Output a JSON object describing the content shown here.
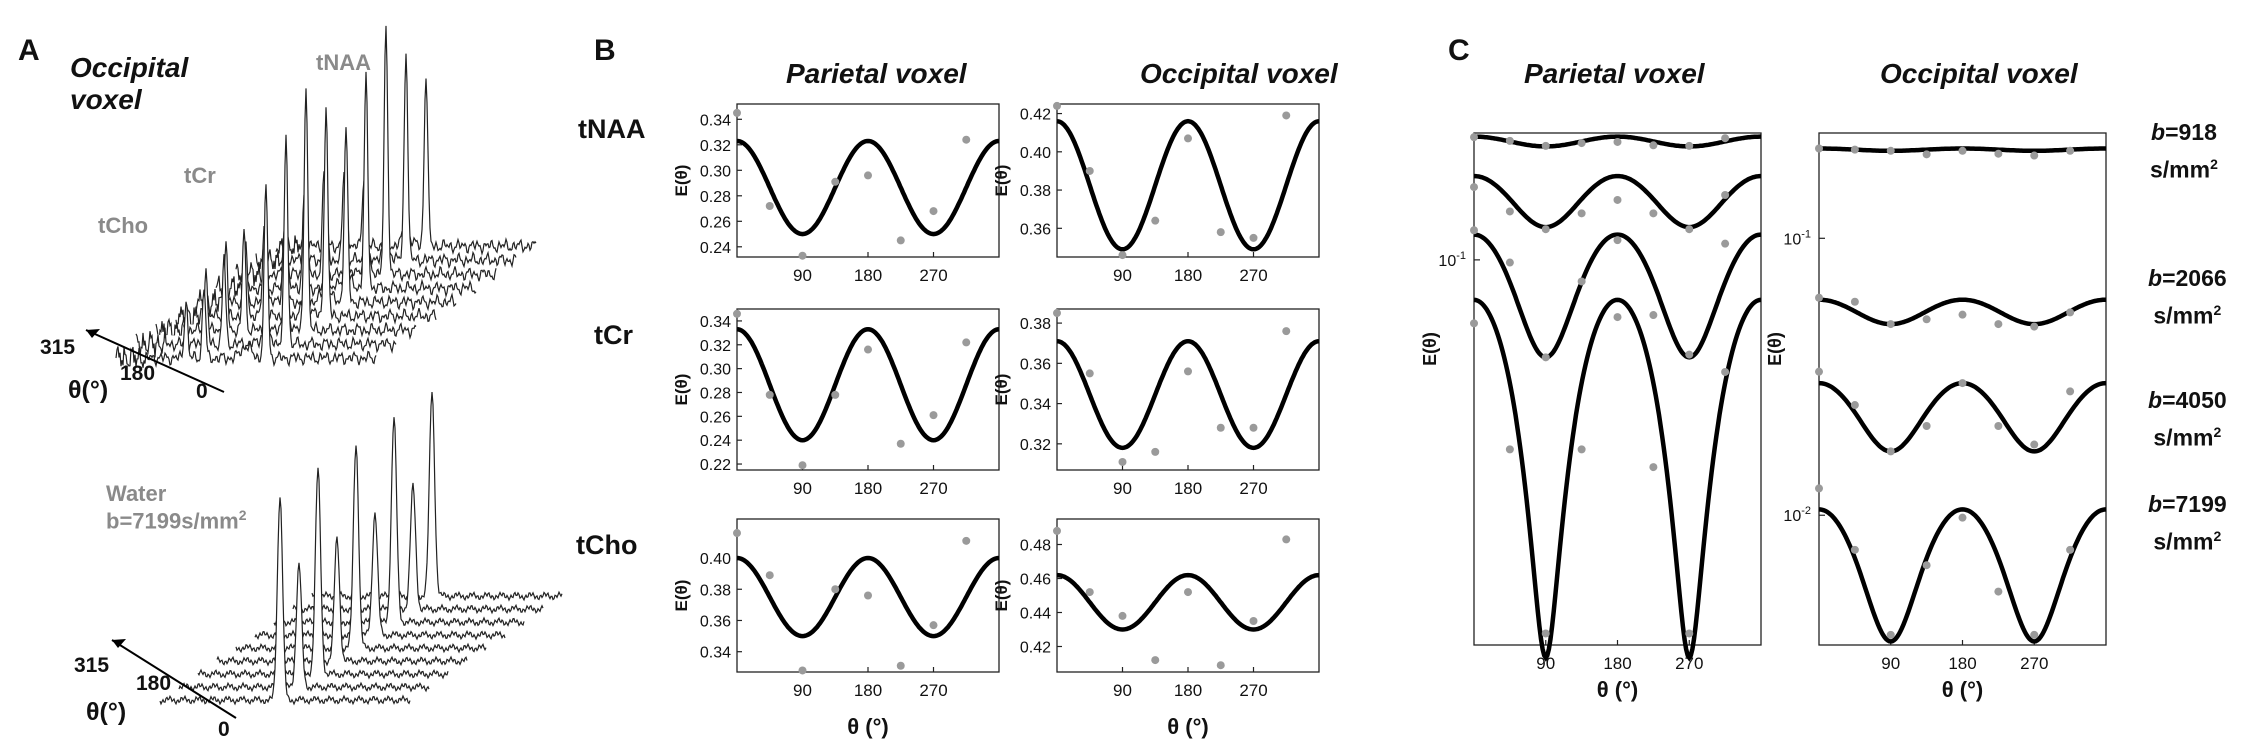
{
  "panelA": {
    "letter": "A",
    "title_line1": "Occipital",
    "title_line2": "voxel",
    "labels": {
      "tNAA": "tNAA",
      "tCr": "tCr",
      "tCho": "tCho"
    },
    "water_line1": "Water",
    "water_line2": "b=7199s/mm",
    "water_sup": "2",
    "axis_ticks": [
      "315",
      "180",
      "0"
    ],
    "axis_label": "θ(°)"
  },
  "panelB": {
    "letter": "B",
    "col_titles": [
      "Parietal voxel",
      "Occipital voxel"
    ],
    "row_labels": [
      "tNAA",
      "tCr",
      "tCho"
    ],
    "ylabel": "E(θ)",
    "xlabel": "θ (°)"
  },
  "panelC": {
    "letter": "C",
    "col_titles": [
      "Parietal voxel",
      "Occipital voxel"
    ],
    "ylabel": "E(θ)",
    "xlabel": "θ (°)",
    "b_labels": [
      {
        "prefix": "b",
        "value": "=918",
        "unit": "s/mm",
        "sup": "2"
      },
      {
        "prefix": "b",
        "value": "=2066",
        "unit": "s/mm",
        "sup": "2"
      },
      {
        "prefix": "b",
        "value": "=4050",
        "unit": "s/mm",
        "sup": "2"
      },
      {
        "prefix": "b",
        "value": "=7199",
        "unit": "s/mm",
        "sup": "2"
      }
    ],
    "parietal_ticks": [
      "10",
      "-1"
    ],
    "occipital_ticks": [
      [
        "10",
        "-1"
      ],
      [
        "10",
        "-2"
      ]
    ]
  },
  "chart_data": [
    {
      "type": "line",
      "panel": "B",
      "title": "Parietal voxel",
      "metabolite": "tNAA",
      "xlabel": "θ (°)",
      "ylabel": "E(θ)",
      "xlim": [
        0,
        360
      ],
      "ylim": [
        0.232,
        0.352
      ],
      "xticks": [
        90,
        180,
        270
      ],
      "yticks": [
        0.24,
        0.26,
        0.28,
        0.3,
        0.32,
        0.34
      ],
      "fit": {
        "mean": 0.2865,
        "amp": 0.0365
      },
      "points": [
        [
          0,
          0.345
        ],
        [
          45,
          0.272
        ],
        [
          90,
          0.233
        ],
        [
          135,
          0.291
        ],
        [
          180,
          0.296
        ],
        [
          225,
          0.245
        ],
        [
          270,
          0.268
        ],
        [
          315,
          0.324
        ]
      ]
    },
    {
      "type": "line",
      "panel": "B",
      "title": "Occipital voxel",
      "metabolite": "tNAA",
      "xlabel": "θ (°)",
      "ylabel": "E(θ)",
      "xlim": [
        0,
        360
      ],
      "ylim": [
        0.345,
        0.425
      ],
      "xticks": [
        90,
        180,
        270
      ],
      "yticks": [
        0.36,
        0.38,
        0.4,
        0.42
      ],
      "fit": {
        "mean": 0.3825,
        "amp": 0.0335
      },
      "points": [
        [
          0,
          0.424
        ],
        [
          45,
          0.39
        ],
        [
          90,
          0.346
        ],
        [
          135,
          0.364
        ],
        [
          180,
          0.407
        ],
        [
          225,
          0.358
        ],
        [
          270,
          0.355
        ],
        [
          315,
          0.419
        ]
      ]
    },
    {
      "type": "line",
      "panel": "B",
      "title": "Parietal voxel",
      "metabolite": "tCr",
      "xlabel": "θ (°)",
      "ylabel": "E(θ)",
      "xlim": [
        0,
        360
      ],
      "ylim": [
        0.215,
        0.35
      ],
      "xticks": [
        90,
        180,
        270
      ],
      "yticks": [
        0.22,
        0.24,
        0.26,
        0.28,
        0.3,
        0.32,
        0.34
      ],
      "fit": {
        "mean": 0.2865,
        "amp": 0.0465
      },
      "points": [
        [
          0,
          0.346
        ],
        [
          45,
          0.278
        ],
        [
          90,
          0.219
        ],
        [
          135,
          0.278
        ],
        [
          180,
          0.316
        ],
        [
          225,
          0.237
        ],
        [
          270,
          0.261
        ],
        [
          315,
          0.322
        ]
      ]
    },
    {
      "type": "line",
      "panel": "B",
      "title": "Occipital voxel",
      "metabolite": "tCr",
      "xlabel": "θ (°)",
      "ylabel": "E(θ)",
      "xlim": [
        0,
        360
      ],
      "ylim": [
        0.307,
        0.387
      ],
      "xticks": [
        90,
        180,
        270
      ],
      "yticks": [
        0.32,
        0.34,
        0.36,
        0.38
      ],
      "fit": {
        "mean": 0.3445,
        "amp": 0.0265
      },
      "points": [
        [
          0,
          0.385
        ],
        [
          45,
          0.355
        ],
        [
          90,
          0.311
        ],
        [
          135,
          0.316
        ],
        [
          180,
          0.356
        ],
        [
          225,
          0.328
        ],
        [
          270,
          0.328
        ],
        [
          315,
          0.376
        ]
      ]
    },
    {
      "type": "line",
      "panel": "B",
      "title": "Parietal voxel",
      "metabolite": "tCho",
      "xlabel": "θ (°)",
      "ylabel": "E(θ)",
      "xlim": [
        0,
        360
      ],
      "ylim": [
        0.327,
        0.425
      ],
      "xticks": [
        90,
        180,
        270
      ],
      "yticks": [
        0.34,
        0.36,
        0.38,
        0.4
      ],
      "fit": {
        "mean": 0.375,
        "amp": 0.025
      },
      "points": [
        [
          0,
          0.416
        ],
        [
          45,
          0.389
        ],
        [
          90,
          0.328
        ],
        [
          135,
          0.38
        ],
        [
          180,
          0.376
        ],
        [
          225,
          0.331
        ],
        [
          270,
          0.357
        ],
        [
          315,
          0.411
        ]
      ]
    },
    {
      "type": "line",
      "panel": "B",
      "title": "Occipital voxel",
      "metabolite": "tCho",
      "xlabel": "θ (°)",
      "ylabel": "E(θ)",
      "xlim": [
        0,
        360
      ],
      "ylim": [
        0.405,
        0.495
      ],
      "xticks": [
        90,
        180,
        270
      ],
      "yticks": [
        0.42,
        0.44,
        0.46,
        0.48
      ],
      "fit": {
        "mean": 0.446,
        "amp": 0.016
      },
      "points": [
        [
          0,
          0.488
        ],
        [
          45,
          0.452
        ],
        [
          90,
          0.438
        ],
        [
          135,
          0.412
        ],
        [
          180,
          0.452
        ],
        [
          225,
          0.409
        ],
        [
          270,
          0.435
        ],
        [
          315,
          0.483
        ]
      ]
    },
    {
      "type": "line",
      "panel": "C",
      "title": "Parietal voxel",
      "xlabel": "θ (°)",
      "ylabel": "E(θ)",
      "yscale": "log",
      "xlim": [
        0,
        360
      ],
      "xticks": [
        90,
        180,
        270
      ],
      "yticks": [
        0.1
      ],
      "series": [
        {
          "name": "b=918",
          "fit": {
            "mean": 0.244,
            "amp": 0.009
          },
          "points": [
            [
              0,
              0.252
            ],
            [
              45,
              0.245
            ],
            [
              90,
              0.236
            ],
            [
              135,
              0.241
            ],
            [
              180,
              0.243
            ],
            [
              225,
              0.237
            ],
            [
              270,
              0.236
            ],
            [
              315,
              0.25
            ]
          ]
        },
        {
          "name": "b=2066",
          "fit": {
            "mean": 0.158,
            "amp": 0.03
          },
          "points": [
            [
              0,
              0.173
            ],
            [
              45,
              0.144
            ],
            [
              90,
              0.126
            ],
            [
              135,
              0.142
            ],
            [
              180,
              0.157
            ],
            [
              225,
              0.142
            ],
            [
              270,
              0.126
            ],
            [
              315,
              0.163
            ]
          ]
        },
        {
          "name": "b=4050",
          "fit": {
            "mean": 0.0845,
            "amp": 0.0365
          },
          "points": [
            [
              0,
              0.125
            ],
            [
              45,
              0.098
            ],
            [
              90,
              0.048
            ],
            [
              135,
              0.085
            ],
            [
              180,
              0.116
            ],
            [
              225,
              0.066
            ],
            [
              270,
              0.049
            ],
            [
              315,
              0.113
            ]
          ]
        },
        {
          "name": "b=7199",
          "fit": {
            "mean": 0.0395,
            "amp": 0.0345
          },
          "points": [
            [
              0,
              0.062
            ],
            [
              45,
              0.024
            ],
            [
              90,
              0.006
            ],
            [
              135,
              0.024
            ],
            [
              180,
              0.065
            ],
            [
              225,
              0.021
            ],
            [
              270,
              0.006
            ],
            [
              315,
              0.043
            ]
          ]
        }
      ]
    },
    {
      "type": "line",
      "panel": "C",
      "title": "Occipital voxel",
      "xlabel": "θ (°)",
      "ylabel": "E(θ)",
      "yscale": "log",
      "xlim": [
        0,
        360
      ],
      "xticks": [
        90,
        180,
        270
      ],
      "yticks": [
        0.1,
        0.01
      ],
      "series": [
        {
          "name": "b=918",
          "fit": {
            "mean": 0.209,
            "amp": 0.002
          },
          "points": [
            [
              0,
              0.211
            ],
            [
              45,
              0.209
            ],
            [
              90,
              0.207
            ],
            [
              135,
              0.201
            ],
            [
              180,
              0.207
            ],
            [
              225,
              0.202
            ],
            [
              270,
              0.199
            ],
            [
              315,
              0.207
            ]
          ]
        },
        {
          "name": "b=2066",
          "fit": {
            "mean": 0.0545,
            "amp": 0.0055
          },
          "points": [
            [
              0,
              0.061
            ],
            [
              45,
              0.059
            ],
            [
              90,
              0.049
            ],
            [
              135,
              0.051
            ],
            [
              180,
              0.053
            ],
            [
              225,
              0.049
            ],
            [
              270,
              0.048
            ],
            [
              315,
              0.054
            ]
          ]
        },
        {
          "name": "b=4050",
          "fit": {
            "mean": 0.0235,
            "amp": 0.0065
          },
          "points": [
            [
              0,
              0.033
            ],
            [
              45,
              0.025
            ],
            [
              90,
              0.017
            ],
            [
              135,
              0.021
            ],
            [
              180,
              0.03
            ],
            [
              225,
              0.021
            ],
            [
              270,
              0.018
            ],
            [
              315,
              0.028
            ]
          ]
        },
        {
          "name": "b=7199",
          "fit": {
            "mean": 0.007,
            "amp": 0.0035
          },
          "points": [
            [
              0,
              0.0125
            ],
            [
              45,
              0.0075
            ],
            [
              90,
              0.0037
            ],
            [
              135,
              0.0066
            ],
            [
              180,
              0.0098
            ],
            [
              225,
              0.0053
            ],
            [
              270,
              0.0037
            ],
            [
              315,
              0.0075
            ]
          ]
        }
      ]
    }
  ]
}
